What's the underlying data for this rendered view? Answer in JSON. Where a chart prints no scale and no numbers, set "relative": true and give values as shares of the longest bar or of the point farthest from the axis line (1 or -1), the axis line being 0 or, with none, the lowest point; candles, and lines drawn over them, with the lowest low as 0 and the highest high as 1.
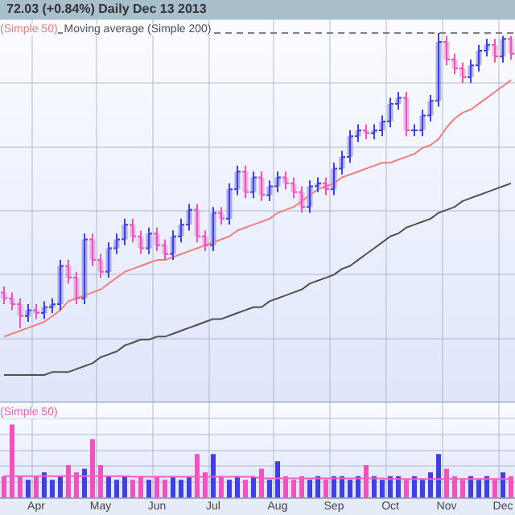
{
  "chart_data": [
    {
      "type": "candlestick",
      "title": "72.03 (+0.84%)   Daily   Dec 13 2013",
      "relative": true,
      "ohlc": [
        [
          0.12,
          0.14,
          0.08,
          0.1
        ],
        [
          0.1,
          0.12,
          0.06,
          0.08
        ],
        [
          0.08,
          0.1,
          0,
          0.04
        ],
        [
          0.04,
          0.08,
          0.02,
          0.06
        ],
        [
          0.06,
          0.08,
          0.03,
          0.05
        ],
        [
          0.05,
          0.09,
          0.03,
          0.07
        ],
        [
          0.07,
          0.1,
          0.05,
          0.08
        ],
        [
          0.08,
          0.23,
          0.06,
          0.21
        ],
        [
          0.21,
          0.23,
          0.15,
          0.17
        ],
        [
          0.17,
          0.19,
          0.08,
          0.1
        ],
        [
          0.1,
          0.32,
          0.08,
          0.3
        ],
        [
          0.3,
          0.32,
          0.21,
          0.23
        ],
        [
          0.23,
          0.25,
          0.17,
          0.19
        ],
        [
          0.19,
          0.29,
          0.17,
          0.27
        ],
        [
          0.27,
          0.32,
          0.25,
          0.3
        ],
        [
          0.3,
          0.37,
          0.28,
          0.35
        ],
        [
          0.35,
          0.37,
          0.29,
          0.31
        ],
        [
          0.31,
          0.33,
          0.25,
          0.27
        ],
        [
          0.27,
          0.34,
          0.25,
          0.32
        ],
        [
          0.32,
          0.34,
          0.26,
          0.28
        ],
        [
          0.28,
          0.3,
          0.23,
          0.25
        ],
        [
          0.25,
          0.33,
          0.23,
          0.31
        ],
        [
          0.31,
          0.37,
          0.29,
          0.35
        ],
        [
          0.35,
          0.42,
          0.33,
          0.4
        ],
        [
          0.4,
          0.42,
          0.29,
          0.31
        ],
        [
          0.31,
          0.33,
          0.26,
          0.28
        ],
        [
          0.28,
          0.41,
          0.26,
          0.39
        ],
        [
          0.39,
          0.41,
          0.35,
          0.37
        ],
        [
          0.37,
          0.49,
          0.35,
          0.47
        ],
        [
          0.47,
          0.55,
          0.45,
          0.53
        ],
        [
          0.53,
          0.55,
          0.44,
          0.46
        ],
        [
          0.46,
          0.53,
          0.44,
          0.51
        ],
        [
          0.51,
          0.53,
          0.43,
          0.45
        ],
        [
          0.45,
          0.5,
          0.43,
          0.48
        ],
        [
          0.48,
          0.53,
          0.46,
          0.51
        ],
        [
          0.51,
          0.53,
          0.47,
          0.49
        ],
        [
          0.49,
          0.51,
          0.44,
          0.46
        ],
        [
          0.46,
          0.48,
          0.39,
          0.41
        ],
        [
          0.41,
          0.5,
          0.39,
          0.48
        ],
        [
          0.48,
          0.51,
          0.46,
          0.49
        ],
        [
          0.49,
          0.51,
          0.45,
          0.47
        ],
        [
          0.47,
          0.56,
          0.45,
          0.54
        ],
        [
          0.54,
          0.6,
          0.52,
          0.58
        ],
        [
          0.58,
          0.67,
          0.56,
          0.65
        ],
        [
          0.65,
          0.69,
          0.63,
          0.67
        ],
        [
          0.67,
          0.69,
          0.64,
          0.66
        ],
        [
          0.66,
          0.69,
          0.64,
          0.67
        ],
        [
          0.67,
          0.72,
          0.65,
          0.7
        ],
        [
          0.7,
          0.78,
          0.68,
          0.76
        ],
        [
          0.76,
          0.8,
          0.74,
          0.78
        ],
        [
          0.78,
          0.8,
          0.65,
          0.67
        ],
        [
          0.67,
          0.69,
          0.65,
          0.67
        ],
        [
          0.67,
          0.74,
          0.65,
          0.72
        ],
        [
          0.72,
          0.79,
          0.7,
          0.77
        ],
        [
          0.77,
          1,
          0.75,
          0.97
        ],
        [
          0.97,
          0.99,
          0.89,
          0.91
        ],
        [
          0.91,
          0.93,
          0.86,
          0.88
        ],
        [
          0.88,
          0.9,
          0.83,
          0.85
        ],
        [
          0.85,
          0.91,
          0.83,
          0.89
        ],
        [
          0.89,
          0.96,
          0.87,
          0.94
        ],
        [
          0.94,
          0.98,
          0.92,
          0.96
        ],
        [
          0.96,
          0.98,
          0.9,
          0.92
        ],
        [
          0.92,
          0.99,
          0.9,
          0.98
        ],
        [
          0.98,
          0.99,
          0.91,
          0.93
        ]
      ],
      "colors": [
        "#f050c0",
        "#f050c0",
        "#f050c0",
        "#4040e0",
        "#f050c0",
        "#4040e0",
        "#4040e0",
        "#4040e0",
        "#f050c0",
        "#f050c0",
        "#4040e0",
        "#f050c0",
        "#f050c0",
        "#4040e0",
        "#4040e0",
        "#4040e0",
        "#f050c0",
        "#f050c0",
        "#4040e0",
        "#f050c0",
        "#f050c0",
        "#4040e0",
        "#4040e0",
        "#4040e0",
        "#f050c0",
        "#f050c0",
        "#4040e0",
        "#f050c0",
        "#4040e0",
        "#4040e0",
        "#f050c0",
        "#4040e0",
        "#f050c0",
        "#4040e0",
        "#4040e0",
        "#f050c0",
        "#f050c0",
        "#f050c0",
        "#4040e0",
        "#4040e0",
        "#f050c0",
        "#4040e0",
        "#4040e0",
        "#4040e0",
        "#4040e0",
        "#f050c0",
        "#4040e0",
        "#4040e0",
        "#4040e0",
        "#4040e0",
        "#f050c0",
        "#4040e0",
        "#4040e0",
        "#4040e0",
        "#4040e0",
        "#f050c0",
        "#f050c0",
        "#f050c0",
        "#4040e0",
        "#4040e0",
        "#4040e0",
        "#f050c0",
        "#4040e0",
        "#f050c0"
      ],
      "series": [
        {
          "type": "line",
          "name": "(Simple 50)",
          "color": "#f08080",
          "values": [
            -0.03,
            -0.02,
            -0.01,
            0.0,
            0.01,
            0.02,
            0.04,
            0.06,
            0.09,
            0.1,
            0.11,
            0.12,
            0.13,
            0.15,
            0.17,
            0.19,
            0.2,
            0.21,
            0.22,
            0.23,
            0.23,
            0.24,
            0.25,
            0.26,
            0.27,
            0.28,
            0.29,
            0.3,
            0.31,
            0.33,
            0.34,
            0.35,
            0.36,
            0.37,
            0.39,
            0.4,
            0.41,
            0.43,
            0.45,
            0.47,
            0.48,
            0.49,
            0.51,
            0.52,
            0.53,
            0.54,
            0.55,
            0.56,
            0.56,
            0.57,
            0.58,
            0.59,
            0.61,
            0.62,
            0.64,
            0.68,
            0.71,
            0.73,
            0.74,
            0.76,
            0.78,
            0.8,
            0.82,
            0.84
          ]
        },
        {
          "type": "line",
          "name": "Moving average (Simple 200)",
          "color": "#505050",
          "values": [
            -0.16,
            -0.16,
            -0.16,
            -0.16,
            -0.16,
            -0.16,
            -0.15,
            -0.15,
            -0.15,
            -0.14,
            -0.13,
            -0.12,
            -0.1,
            -0.09,
            -0.08,
            -0.06,
            -0.05,
            -0.04,
            -0.04,
            -0.03,
            -0.03,
            -0.02,
            -0.01,
            0.0,
            0.01,
            0.02,
            0.03,
            0.03,
            0.04,
            0.05,
            0.06,
            0.07,
            0.07,
            0.09,
            0.1,
            0.11,
            0.12,
            0.13,
            0.15,
            0.16,
            0.17,
            0.18,
            0.2,
            0.21,
            0.23,
            0.25,
            0.27,
            0.29,
            0.31,
            0.32,
            0.34,
            0.35,
            0.36,
            0.37,
            0.39,
            0.4,
            0.41,
            0.43,
            0.44,
            0.45,
            0.46,
            0.47,
            0.48,
            0.49
          ]
        }
      ],
      "ref_lines": [
        {
          "axis": "y",
          "value": 1,
          "color": "#808080",
          "line_style": "dashed"
        }
      ],
      "grid": true,
      "legend": "top left",
      "tick_labels": false
    },
    {
      "type": "bar",
      "relative": true,
      "categories": [
        null,
        null,
        null,
        null,
        "Apr",
        null,
        null,
        null,
        null,
        null,
        null,
        null,
        "May",
        null,
        null,
        null,
        null,
        null,
        null,
        "Jun",
        null,
        null,
        null,
        null,
        null,
        null,
        "Jul",
        null,
        null,
        null,
        null,
        null,
        null,
        null,
        "Aug",
        null,
        null,
        null,
        null,
        null,
        null,
        "Sep",
        null,
        null,
        null,
        null,
        null,
        null,
        "Oct",
        null,
        null,
        null,
        null,
        null,
        null,
        "Nov",
        null,
        null,
        null,
        null,
        null,
        null,
        "Dec",
        null
      ],
      "values": [
        0.3,
        1.0,
        0.3,
        0.25,
        0.3,
        0.35,
        0.25,
        0.3,
        0.45,
        0.35,
        0.4,
        0.8,
        0.45,
        0.3,
        0.25,
        0.3,
        0.25,
        0.3,
        0.25,
        0.3,
        0.25,
        0.3,
        0.25,
        0.3,
        0.6,
        0.35,
        0.6,
        0.3,
        0.25,
        0.3,
        0.25,
        0.3,
        0.4,
        0.25,
        0.5,
        0.3,
        0.25,
        0.3,
        0.25,
        0.3,
        0.25,
        0.3,
        0.3,
        0.25,
        0.3,
        0.45,
        0.3,
        0.25,
        0.3,
        0.3,
        0.25,
        0.3,
        0.25,
        0.35,
        0.6,
        0.4,
        0.3,
        0.25,
        0.3,
        0.25,
        0.3,
        0.25,
        0.35,
        0.3
      ],
      "colors": [
        "#f050c0",
        "#f050c0",
        "#f050c0",
        "#4040e0",
        "#f050c0",
        "#4040e0",
        "#4040e0",
        "#4040e0",
        "#f050c0",
        "#f050c0",
        "#4040e0",
        "#f050c0",
        "#f050c0",
        "#4040e0",
        "#4040e0",
        "#4040e0",
        "#f050c0",
        "#f050c0",
        "#4040e0",
        "#f050c0",
        "#f050c0",
        "#4040e0",
        "#4040e0",
        "#4040e0",
        "#f050c0",
        "#f050c0",
        "#4040e0",
        "#f050c0",
        "#4040e0",
        "#4040e0",
        "#f050c0",
        "#4040e0",
        "#f050c0",
        "#4040e0",
        "#4040e0",
        "#f050c0",
        "#f050c0",
        "#f050c0",
        "#4040e0",
        "#4040e0",
        "#f050c0",
        "#4040e0",
        "#4040e0",
        "#4040e0",
        "#4040e0",
        "#f050c0",
        "#4040e0",
        "#4040e0",
        "#4040e0",
        "#4040e0",
        "#f050c0",
        "#4040e0",
        "#4040e0",
        "#4040e0",
        "#4040e0",
        "#f050c0",
        "#f050c0",
        "#f050c0",
        "#4040e0",
        "#4040e0",
        "#4040e0",
        "#f050c0",
        "#4040e0",
        "#f050c0"
      ],
      "series": [
        {
          "type": "line",
          "name": "(Simple 50)",
          "color": "#f060c0",
          "values": [
            0.3,
            0.3,
            0.3,
            0.3,
            0.3,
            0.3,
            0.3,
            0.3,
            0.3,
            0.3,
            0.3,
            0.3,
            0.3,
            0.3,
            0.3,
            0.3,
            0.29,
            0.29,
            0.29,
            0.29,
            0.29,
            0.29,
            0.29,
            0.29,
            0.29,
            0.29,
            0.29,
            0.29,
            0.29,
            0.29,
            0.29,
            0.29,
            0.27,
            0.27,
            0.27,
            0.27,
            0.27,
            0.27,
            0.27,
            0.27,
            0.27,
            0.27,
            0.27,
            0.27,
            0.27,
            0.27,
            0.27,
            0.27,
            0.26,
            0.26,
            0.26,
            0.26,
            0.26,
            0.26,
            0.26,
            0.26,
            0.26,
            0.26,
            0.26,
            0.26,
            0.26,
            0.26,
            0.26,
            0.26
          ]
        }
      ],
      "grid": true,
      "legend": "top left",
      "tick_labels": "x"
    }
  ]
}
